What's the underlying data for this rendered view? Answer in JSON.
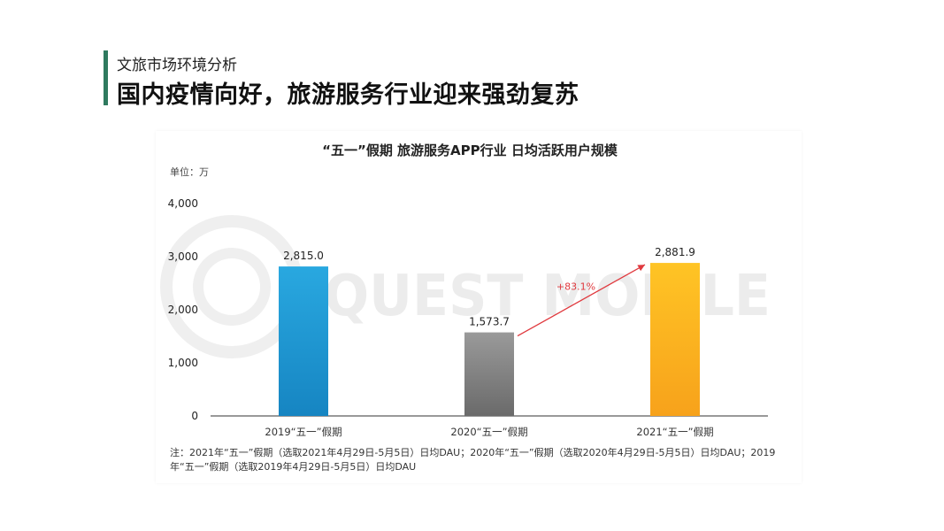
{
  "header": {
    "section_label": "文旅市场环境分析",
    "title": "国内疫情向好，旅游服务行业迎来强劲复苏",
    "accent_color": "#2f7a5f"
  },
  "chart_data": {
    "type": "bar",
    "title": "“五一”假期 旅游服务APP行业 日均活跃用户规模",
    "unit_label": "单位：万",
    "categories": [
      "2019“五一”假期",
      "2020“五一”假期",
      "2021“五一”假期"
    ],
    "values": [
      2815.0,
      1573.7,
      2881.9
    ],
    "value_labels": [
      "2,815.0",
      "1,573.7",
      "2,881.9"
    ],
    "ylim": [
      0,
      4000
    ],
    "yticks": [
      0,
      1000,
      2000,
      3000,
      4000
    ],
    "ytick_labels": [
      "0",
      "1,000",
      "2,000",
      "3,000",
      "4,000"
    ],
    "bar_colors": [
      "#1f9ad6",
      "#8a8a8a",
      "#fbb81b"
    ],
    "grid": false,
    "annotation": {
      "text": "+83.1%",
      "from_category": "2020“五一”假期",
      "to_category": "2021“五一”假期",
      "color": "#e0393e"
    },
    "watermark": "QUEST MOBILE",
    "footnote": "注：2021年“五一”假期（选取2021年4月29日-5月5日）日均DAU；2020年“五一”假期（选取2020年4月29日-5月5日）日均DAU；2019年“五一”假期（选取2019年4月29日-5月5日）日均DAU"
  }
}
